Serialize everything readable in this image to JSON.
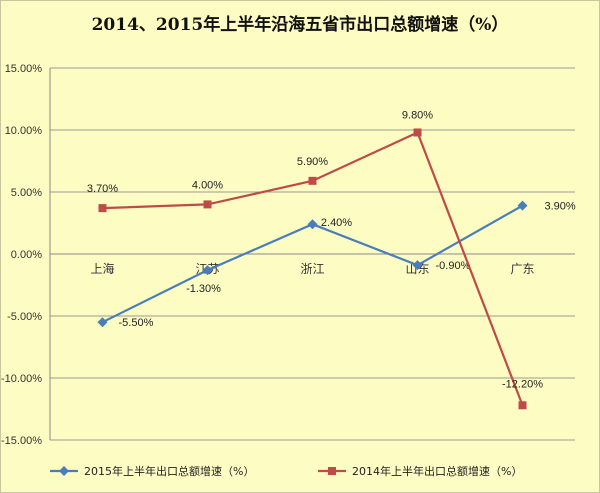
{
  "chart_data": {
    "type": "line",
    "title": "2014、2015年上半年沿海五省市出口总额增速（%）",
    "categories": [
      "上海",
      "江苏",
      "浙江",
      "山东",
      "广东"
    ],
    "ylim": [
      -15,
      15
    ],
    "yticks": [
      15,
      10,
      5,
      0,
      -5,
      -10,
      -15
    ],
    "ytick_labels": [
      "15.00%",
      "10.00%",
      "5.00%",
      "0.00%",
      "-5.00%",
      "-10.00%",
      "-15.00%"
    ],
    "grid": true,
    "legend_position": "bottom",
    "series": [
      {
        "name": "2015年上半年出口总额增速（%）",
        "values": [
          -5.5,
          -1.3,
          2.4,
          -0.9,
          3.9
        ],
        "labels": [
          "-5.50%",
          "-1.30%",
          "2.40%",
          "-0.90%",
          "3.90%"
        ],
        "color": "#4a7ebb",
        "marker": "diamond"
      },
      {
        "name": "2014年上半年出口总额增速（%）",
        "values": [
          3.7,
          4.0,
          5.9,
          9.8,
          -12.2
        ],
        "labels": [
          "3.70%",
          "4.00%",
          "5.90%",
          "9.80%",
          "-12.20%"
        ],
        "color": "#be4b48",
        "marker": "square"
      }
    ]
  }
}
